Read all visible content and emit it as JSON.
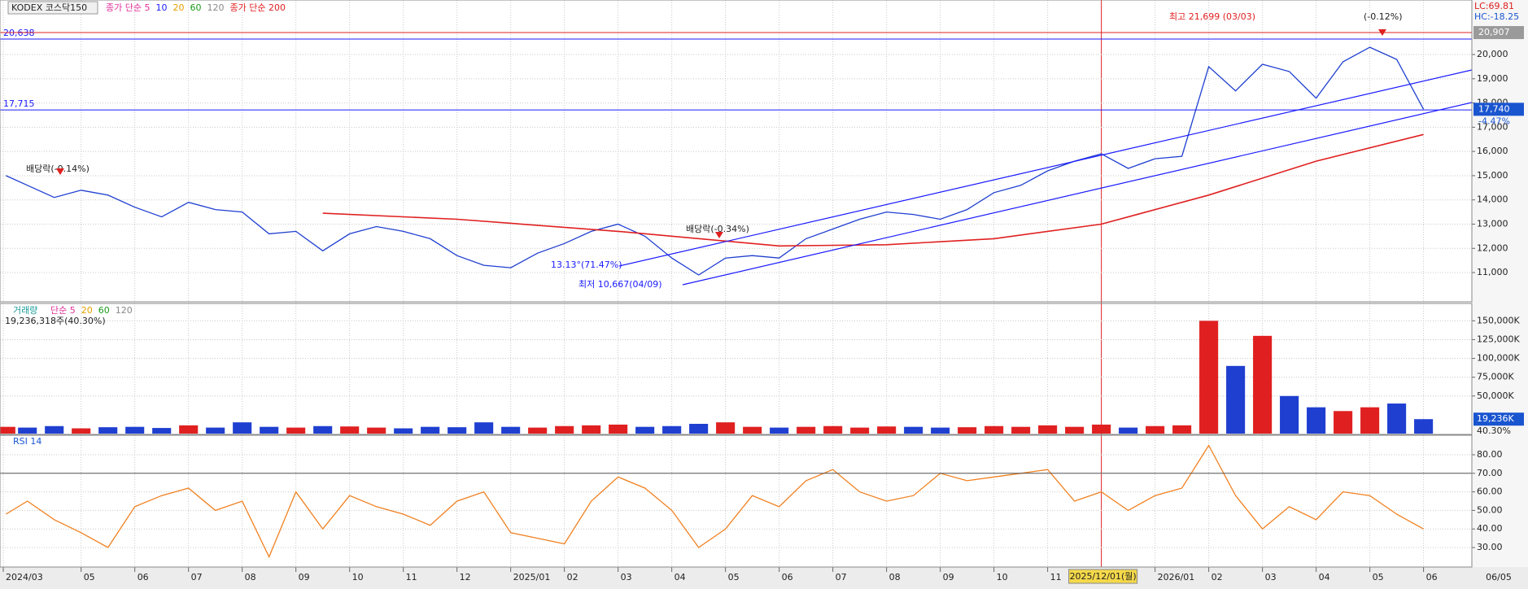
{
  "legend": {
    "name": "KODEX 코스닥150",
    "items": [
      {
        "text": "종가 단순 5",
        "color": "#e0309a"
      },
      {
        "text": "10",
        "color": "#1a1aff"
      },
      {
        "text": "20",
        "color": "#e8a000"
      },
      {
        "text": "60",
        "color": "#1a9a1a"
      },
      {
        "text": "120",
        "color": "#888888"
      },
      {
        "text": "종가 단순 200",
        "color": "#e02020"
      }
    ]
  },
  "top_right": {
    "lc": "LC:69.81",
    "hc": "HC:-18.25"
  },
  "annotations": [
    "배당락(-0.14%)",
    "배당락(-0.34%)",
    "최고 21,699 (03/03)",
    "(-0.12%)",
    "13.13°(71.47%)",
    "최저 10,667(04/09)"
  ],
  "chart_data": [
    {
      "type": "line",
      "title": "KODEX 코스닥150",
      "x": [
        3.6,
        4,
        4.5,
        5,
        5.5,
        6,
        6.5,
        7,
        7.5,
        8,
        8.5,
        9,
        9.5,
        10,
        10.5,
        11,
        11.5,
        12,
        12.5,
        13,
        13.5,
        14,
        14.5,
        15,
        15.5,
        16,
        16.5,
        17,
        17.5,
        18,
        18.5,
        19,
        19.5,
        20,
        20.5,
        21,
        21.5,
        22,
        22.5,
        23,
        23.5,
        24,
        24.5,
        25,
        25.5,
        26,
        26.5,
        27,
        27.5,
        28,
        28.5,
        29,
        29.5,
        30
      ],
      "series": [
        {
          "color": "#1f3fd0",
          "values": [
            15000,
            14600,
            14100,
            14400,
            14200,
            13700,
            13300,
            13900,
            13600,
            13500,
            12600,
            12700,
            11900,
            12600,
            12900,
            12700,
            12400,
            11700,
            11300,
            11200,
            11800,
            12200,
            12700,
            13000,
            12500,
            11600,
            10900,
            11600,
            11700,
            11600,
            12400,
            12800,
            13200,
            13500,
            13400,
            13200,
            13600,
            14300,
            14600,
            15200,
            15600,
            15900,
            15300,
            15700,
            15800,
            19500,
            18500,
            19600,
            19300,
            18200,
            19700,
            20300,
            19800,
            17740
          ]
        },
        {
          "name": "종가 단순 200",
          "color": "#e02020",
          "x": [
            9.5,
            12,
            15,
            18,
            20,
            22,
            24,
            26,
            28,
            30
          ],
          "values": [
            13450,
            13200,
            12700,
            12100,
            12150,
            12400,
            13000,
            14200,
            15600,
            16700
          ]
        }
      ],
      "xlim": [
        3.55,
        30.9
      ],
      "xticks": [
        {
          "value": 3.55,
          "label": "2024/03"
        },
        {
          "value": 5,
          "label": "05"
        },
        {
          "value": 6,
          "label": "06"
        },
        {
          "value": 7,
          "label": "07"
        },
        {
          "value": 8,
          "label": "08"
        },
        {
          "value": 9,
          "label": "09"
        },
        {
          "value": 10,
          "label": "10"
        },
        {
          "value": 11,
          "label": "11"
        },
        {
          "value": 12,
          "label": "12"
        },
        {
          "value": 13,
          "label": "2025/01"
        },
        {
          "value": 14,
          "label": "02"
        },
        {
          "value": 15,
          "label": "03"
        },
        {
          "value": 16,
          "label": "04"
        },
        {
          "value": 17,
          "label": "05"
        },
        {
          "value": 18,
          "label": "06"
        },
        {
          "value": 19,
          "label": "07"
        },
        {
          "value": 20,
          "label": "08"
        },
        {
          "value": 21,
          "label": "09"
        },
        {
          "value": 22,
          "label": "10"
        },
        {
          "value": 23,
          "label": "11"
        },
        {
          "value": 25,
          "label": "2026/01"
        },
        {
          "value": 26,
          "label": "02"
        },
        {
          "value": 27,
          "label": "03"
        },
        {
          "value": 28,
          "label": "04"
        },
        {
          "value": 29,
          "label": "05"
        },
        {
          "value": 30,
          "label": "06"
        }
      ],
      "cursor": {
        "value": 24,
        "label": "2025/12/01(월)"
      },
      "end_label": "06/05",
      "ylim": [
        9860,
        22050
      ],
      "yticks": [
        {
          "value": 11000,
          "label": "11,000"
        },
        {
          "value": 12000,
          "label": "12,000"
        },
        {
          "value": 13000,
          "label": "13,000"
        },
        {
          "value": 14000,
          "label": "14,000"
        },
        {
          "value": 15000,
          "label": "15,000"
        },
        {
          "value": 16000,
          "label": "16,000"
        },
        {
          "value": 17000,
          "label": "17,000"
        },
        {
          "value": 18000,
          "label": "18,000"
        },
        {
          "value": 19000,
          "label": "19,000"
        },
        {
          "value": 20000,
          "label": "20,000"
        }
      ],
      "hlines": [
        {
          "value": 20638,
          "label": "20,638",
          "color": "#1a1aff"
        },
        {
          "value": 17715,
          "label": "17,715",
          "color": "#1a1aff"
        }
      ],
      "price_boxes": [
        {
          "value": 20907,
          "label": "20,907",
          "color": "#9a9a9a",
          "line": "#e02020"
        },
        {
          "value": 17740,
          "label": "17,740",
          "color": "#1a55d0"
        }
      ],
      "change": "-4.47%",
      "grid": true
    },
    {
      "type": "bar",
      "title": "거래량",
      "legend": [
        {
          "text": "단순 5",
          "color": "#e0309a"
        },
        {
          "text": "20",
          "color": "#e8a000"
        },
        {
          "text": "60",
          "color": "#1a9a1a"
        },
        {
          "text": "120",
          "color": "#888888"
        }
      ],
      "info": "19,236,318주(40.30%)",
      "up_color": "#e02020",
      "down_color": "#1f3fd0",
      "values": [
        9000,
        8000,
        10000,
        7000,
        8500,
        9000,
        7500,
        11000,
        8000,
        15000,
        9000,
        8000,
        10000,
        9500,
        8000,
        7000,
        9000,
        8500,
        15000,
        9000,
        8000,
        10000,
        11000,
        12000,
        9000,
        10000,
        13000,
        15000,
        9000,
        8000,
        9000,
        10000,
        8000,
        9500,
        9000,
        8000,
        8500,
        10000,
        9000,
        11000,
        9000,
        12000,
        8000,
        10000,
        11000,
        150000,
        90000,
        130000,
        50000,
        35000,
        30000,
        35000,
        40000,
        19236
      ],
      "ylim": [
        0,
        172000
      ],
      "yticks": [
        {
          "value": 50000,
          "label": "50,000K"
        },
        {
          "value": 75000,
          "label": "75,000K"
        },
        {
          "value": 100000,
          "label": "100,000K"
        },
        {
          "value": 125000,
          "label": "125,000K"
        },
        {
          "value": 150000,
          "label": "150,000K"
        }
      ],
      "last": {
        "value": 19236,
        "label": "19,236K"
      },
      "ratio": "40.30%",
      "grid": true
    },
    {
      "type": "line",
      "title": "RSI 14",
      "color": "#f08020",
      "values": [
        48,
        55,
        45,
        38,
        30,
        52,
        58,
        62,
        50,
        55,
        25,
        60,
        40,
        58,
        52,
        48,
        42,
        55,
        60,
        38,
        35,
        32,
        55,
        68,
        62,
        50,
        30,
        40,
        58,
        52,
        66,
        72,
        60,
        55,
        58,
        70,
        66,
        68,
        70,
        72,
        55,
        60,
        50,
        58,
        62,
        85,
        58,
        40,
        52,
        45,
        60,
        58,
        48,
        40
      ],
      "ylim": [
        19.5,
        90.5
      ],
      "yticks": [
        {
          "value": 30,
          "label": "30.00"
        },
        {
          "value": 40,
          "label": "40.00"
        },
        {
          "value": 50,
          "label": "50.00"
        },
        {
          "value": 60,
          "label": "60.00"
        },
        {
          "value": 70,
          "label": "70.00"
        },
        {
          "value": 80,
          "label": "80.00"
        }
      ],
      "ref_line": 70,
      "grid": true
    }
  ]
}
